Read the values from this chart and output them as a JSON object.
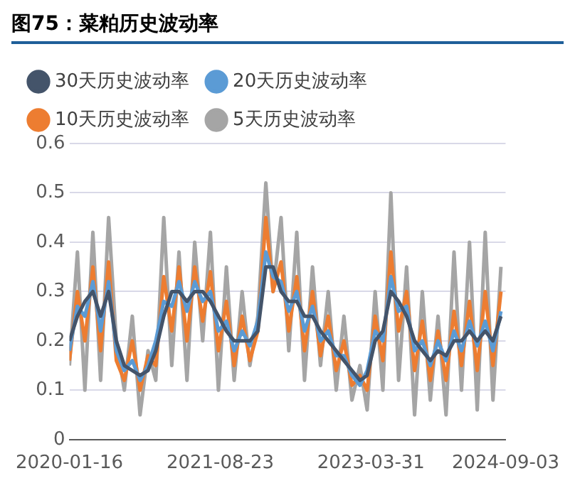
{
  "chart_data": {
    "type": "line",
    "title": "图75：菜粕历史波动率",
    "x": [
      "2020-01-16",
      "2020-02-16",
      "2020-03-16",
      "2020-04-16",
      "2020-05-16",
      "2020-06-16",
      "2020-07-16",
      "2020-08-16",
      "2020-09-16",
      "2020-10-16",
      "2020-11-16",
      "2020-12-16",
      "2021-01-16",
      "2021-02-16",
      "2021-03-16",
      "2021-04-16",
      "2021-05-16",
      "2021-06-16",
      "2021-07-16",
      "2021-08-16",
      "2021-09-16",
      "2021-10-16",
      "2021-11-16",
      "2021-12-16",
      "2022-01-16",
      "2022-02-16",
      "2022-03-16",
      "2022-04-16",
      "2022-05-16",
      "2022-06-16",
      "2022-07-16",
      "2022-08-16",
      "2022-09-16",
      "2022-10-16",
      "2022-11-16",
      "2022-12-16",
      "2023-01-16",
      "2023-02-16",
      "2023-03-16",
      "2023-04-16",
      "2023-05-16",
      "2023-06-16",
      "2023-07-16",
      "2023-08-16",
      "2023-09-16",
      "2023-10-16",
      "2023-11-16",
      "2023-12-16",
      "2024-01-16",
      "2024-02-16",
      "2024-03-16",
      "2024-04-16",
      "2024-05-16",
      "2024-06-16",
      "2024-07-16",
      "2024-08-16"
    ],
    "series": [
      {
        "name": "30天历史波动率",
        "color": "#44546a",
        "values": [
          0.2,
          0.25,
          0.28,
          0.3,
          0.25,
          0.3,
          0.2,
          0.15,
          0.14,
          0.13,
          0.14,
          0.18,
          0.25,
          0.3,
          0.3,
          0.28,
          0.3,
          0.3,
          0.28,
          0.25,
          0.22,
          0.2,
          0.2,
          0.2,
          0.22,
          0.35,
          0.35,
          0.3,
          0.28,
          0.28,
          0.25,
          0.25,
          0.22,
          0.2,
          0.18,
          0.16,
          0.14,
          0.12,
          0.13,
          0.2,
          0.22,
          0.3,
          0.28,
          0.25,
          0.2,
          0.18,
          0.16,
          0.18,
          0.17,
          0.2,
          0.2,
          0.22,
          0.2,
          0.22,
          0.2,
          0.25
        ]
      },
      {
        "name": "20天历史波动率",
        "color": "#5b9bd5",
        "values": [
          0.18,
          0.27,
          0.25,
          0.32,
          0.22,
          0.32,
          0.18,
          0.14,
          0.16,
          0.12,
          0.15,
          0.2,
          0.28,
          0.27,
          0.32,
          0.26,
          0.32,
          0.28,
          0.3,
          0.22,
          0.24,
          0.18,
          0.22,
          0.19,
          0.24,
          0.38,
          0.33,
          0.32,
          0.26,
          0.3,
          0.22,
          0.27,
          0.2,
          0.22,
          0.17,
          0.17,
          0.13,
          0.11,
          0.14,
          0.22,
          0.2,
          0.33,
          0.26,
          0.27,
          0.18,
          0.2,
          0.15,
          0.2,
          0.16,
          0.22,
          0.18,
          0.24,
          0.19,
          0.24,
          0.18,
          0.26
        ]
      },
      {
        "name": "10天历史波动率",
        "color": "#ed7d31",
        "values": [
          0.16,
          0.3,
          0.2,
          0.35,
          0.18,
          0.36,
          0.16,
          0.12,
          0.2,
          0.1,
          0.17,
          0.15,
          0.33,
          0.22,
          0.35,
          0.2,
          0.35,
          0.24,
          0.34,
          0.18,
          0.28,
          0.15,
          0.25,
          0.16,
          0.22,
          0.45,
          0.3,
          0.36,
          0.22,
          0.33,
          0.18,
          0.3,
          0.17,
          0.25,
          0.14,
          0.2,
          0.11,
          0.13,
          0.1,
          0.25,
          0.16,
          0.38,
          0.22,
          0.3,
          0.14,
          0.24,
          0.12,
          0.22,
          0.12,
          0.26,
          0.15,
          0.28,
          0.14,
          0.3,
          0.15,
          0.3
        ]
      },
      {
        "name": "5天历史波动率",
        "color": "#a5a5a5",
        "values": [
          0.15,
          0.38,
          0.1,
          0.42,
          0.12,
          0.45,
          0.2,
          0.1,
          0.25,
          0.05,
          0.18,
          0.12,
          0.45,
          0.15,
          0.38,
          0.12,
          0.4,
          0.2,
          0.42,
          0.1,
          0.35,
          0.12,
          0.3,
          0.15,
          0.25,
          0.52,
          0.3,
          0.45,
          0.18,
          0.42,
          0.12,
          0.35,
          0.15,
          0.3,
          0.1,
          0.25,
          0.08,
          0.15,
          0.06,
          0.3,
          0.1,
          0.5,
          0.12,
          0.35,
          0.05,
          0.3,
          0.08,
          0.25,
          0.05,
          0.38,
          0.1,
          0.4,
          0.06,
          0.42,
          0.08,
          0.35
        ]
      }
    ],
    "xlim": [
      "2020-01-16",
      "2024-09-03"
    ],
    "xticks": [
      "2020-01-16",
      "2021-08-23",
      "2023-03-31",
      "2024-09-03"
    ],
    "ylim": [
      0,
      0.6
    ],
    "yticks": [
      0,
      0.1,
      0.2,
      0.3,
      0.4,
      0.5,
      0.6
    ],
    "grid": "y",
    "legend": "top",
    "line_style": "solid"
  }
}
